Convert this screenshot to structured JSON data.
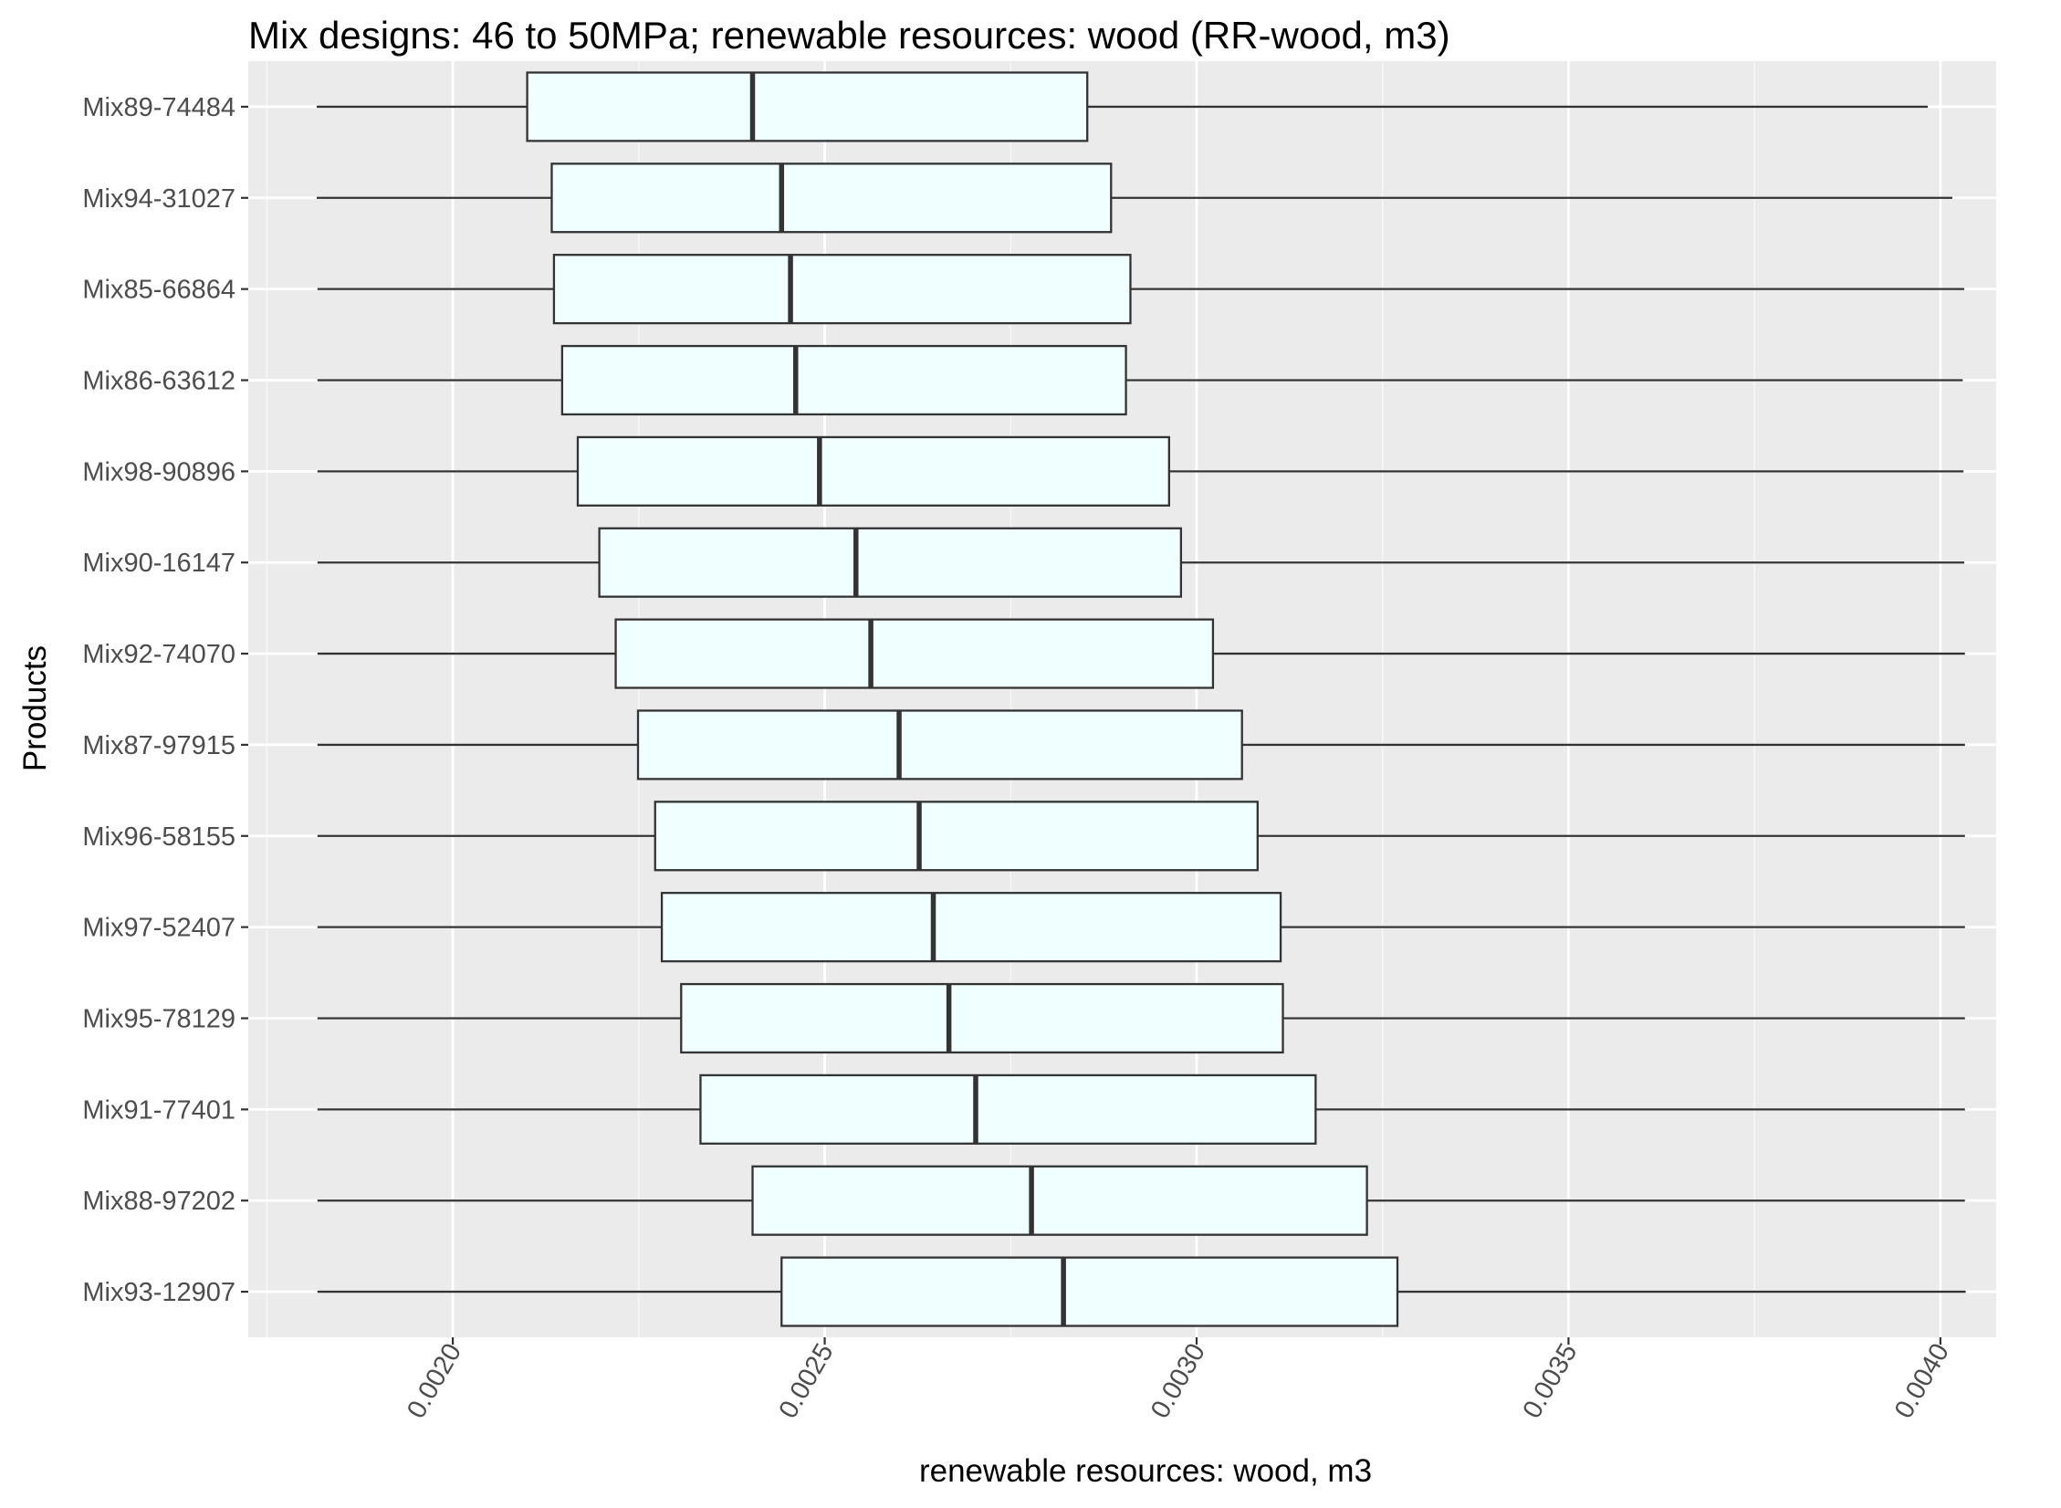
{
  "chart_data": {
    "type": "boxplot",
    "orientation": "horizontal",
    "title": "Mix designs: 46 to 50MPa; renewable resources: wood (RR-wood, m3)",
    "xlabel": "renewable resources: wood, m3",
    "ylabel": "Products",
    "xlim": [
      0.001725,
      0.004075
    ],
    "x_ticks": [
      0.002,
      0.0025,
      0.003,
      0.0035,
      0.004
    ],
    "x_tick_labels": [
      "0.0020",
      "0.0025",
      "0.0030",
      "0.0035",
      "0.0040"
    ],
    "grid": true,
    "box_fill": "#F0FFFF",
    "panel_background": "#EBEBEB",
    "series": [
      {
        "name": "Mix89-74484",
        "min": 0.001817,
        "q1": 0.0021,
        "median": 0.002403,
        "q3": 0.002853,
        "max": 0.003983
      },
      {
        "name": "Mix94-31027",
        "min": 0.001817,
        "q1": 0.002133,
        "median": 0.002442,
        "q3": 0.002885,
        "max": 0.004016
      },
      {
        "name": "Mix85-66864",
        "min": 0.001818,
        "q1": 0.002136,
        "median": 0.002454,
        "q3": 0.002911,
        "max": 0.004032
      },
      {
        "name": "Mix86-63612",
        "min": 0.001818,
        "q1": 0.002147,
        "median": 0.002461,
        "q3": 0.002905,
        "max": 0.00403
      },
      {
        "name": "Mix98-90896",
        "min": 0.001818,
        "q1": 0.002168,
        "median": 0.002493,
        "q3": 0.002963,
        "max": 0.004031
      },
      {
        "name": "Mix90-16147",
        "min": 0.001818,
        "q1": 0.002197,
        "median": 0.002542,
        "q3": 0.002979,
        "max": 0.004032
      },
      {
        "name": "Mix92-74070",
        "min": 0.001818,
        "q1": 0.002219,
        "median": 0.002562,
        "q3": 0.003022,
        "max": 0.004033
      },
      {
        "name": "Mix87-97915",
        "min": 0.001818,
        "q1": 0.002249,
        "median": 0.0026,
        "q3": 0.003061,
        "max": 0.004033
      },
      {
        "name": "Mix96-58155",
        "min": 0.001818,
        "q1": 0.002272,
        "median": 0.002627,
        "q3": 0.003082,
        "max": 0.004033
      },
      {
        "name": "Mix97-52407",
        "min": 0.001818,
        "q1": 0.002281,
        "median": 0.002646,
        "q3": 0.003113,
        "max": 0.004033
      },
      {
        "name": "Mix95-78129",
        "min": 0.001818,
        "q1": 0.002307,
        "median": 0.002667,
        "q3": 0.003116,
        "max": 0.004033
      },
      {
        "name": "Mix91-77401",
        "min": 0.001818,
        "q1": 0.002333,
        "median": 0.002703,
        "q3": 0.00316,
        "max": 0.004033
      },
      {
        "name": "Mix88-97202",
        "min": 0.001818,
        "q1": 0.002403,
        "median": 0.002778,
        "q3": 0.003229,
        "max": 0.004033
      },
      {
        "name": "Mix93-12907",
        "min": 0.001818,
        "q1": 0.002442,
        "median": 0.002821,
        "q3": 0.00327,
        "max": 0.004034
      }
    ]
  }
}
